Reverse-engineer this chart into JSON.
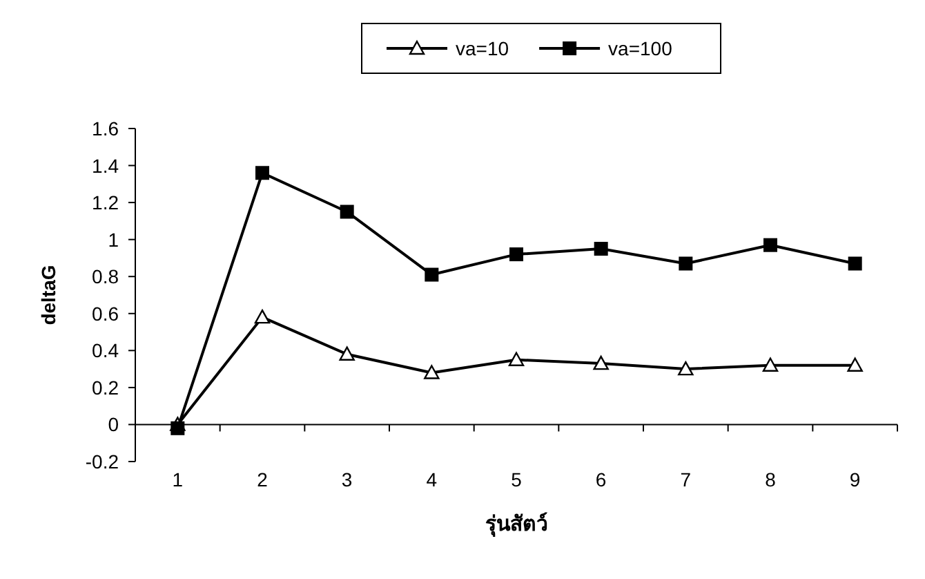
{
  "chart_data": {
    "type": "line",
    "xlabel": "รุ่นสัตว์",
    "ylabel": "deltaG",
    "categories": [
      "1",
      "2",
      "3",
      "4",
      "5",
      "6",
      "7",
      "8",
      "9"
    ],
    "series": [
      {
        "name": "va=10",
        "color": "#000000",
        "marker": "triangle",
        "values": [
          0,
          0.58,
          0.38,
          0.28,
          0.35,
          0.33,
          0.3,
          0.32,
          0.32
        ]
      },
      {
        "name": "va=100",
        "color": "#000000",
        "marker": "square",
        "values": [
          -0.02,
          1.36,
          1.15,
          0.81,
          0.92,
          0.95,
          0.87,
          0.97,
          0.87
        ]
      }
    ],
    "ylim": [
      -0.2,
      1.6
    ],
    "yticks": [
      -0.2,
      0,
      0.2,
      0.4,
      0.6,
      0.8,
      1,
      1.2,
      1.4,
      1.6
    ],
    "grid": false,
    "legend": "top"
  }
}
